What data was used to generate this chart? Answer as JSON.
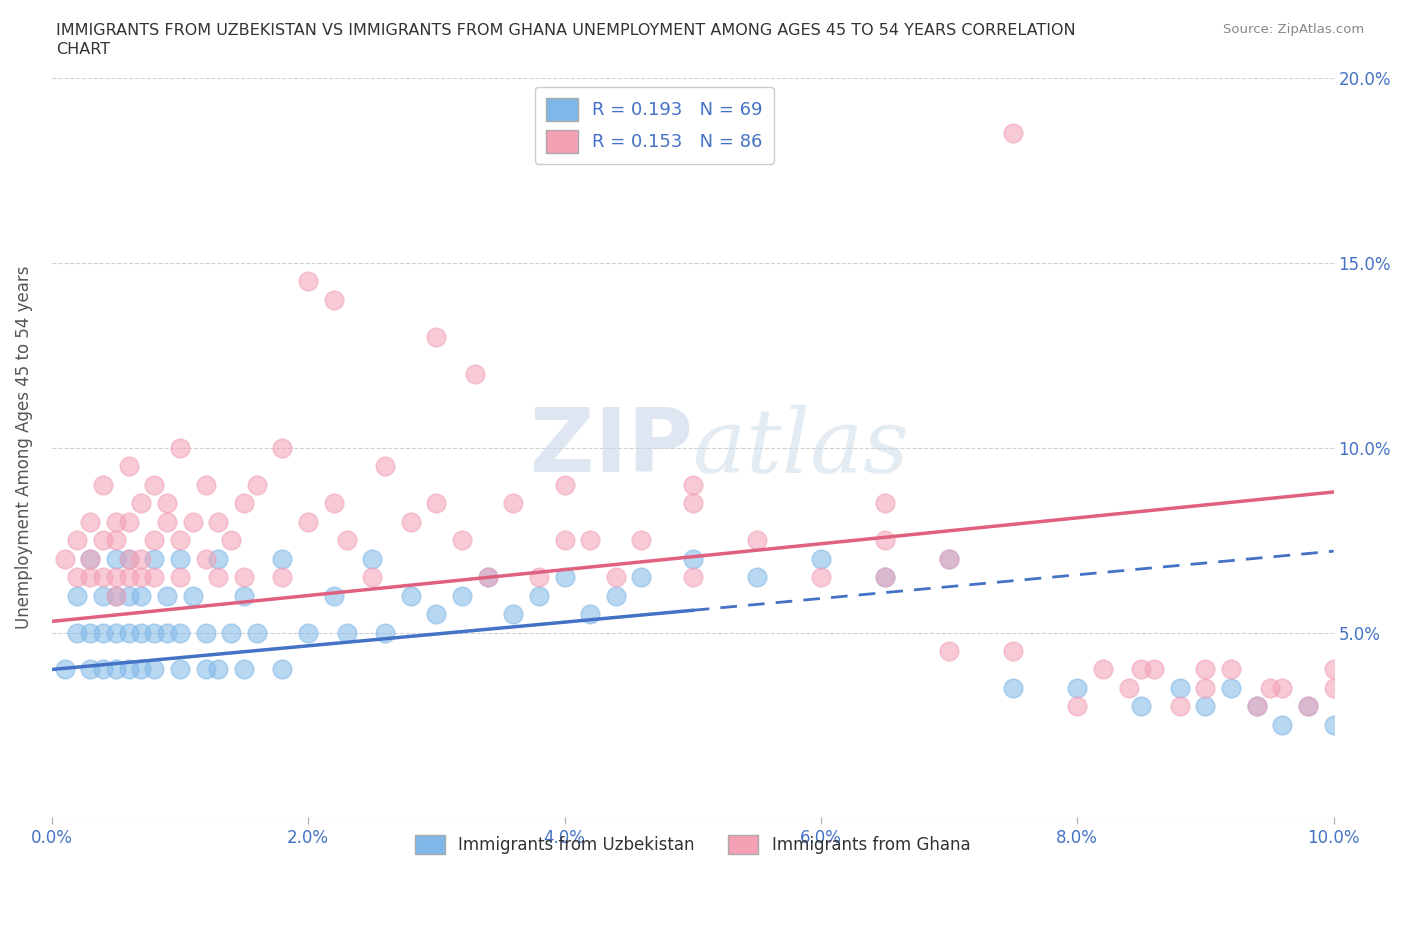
{
  "title_line1": "IMMIGRANTS FROM UZBEKISTAN VS IMMIGRANTS FROM GHANA UNEMPLOYMENT AMONG AGES 45 TO 54 YEARS CORRELATION",
  "title_line2": "CHART",
  "source": "Source: ZipAtlas.com",
  "ylabel": "Unemployment Among Ages 45 to 54 years",
  "legend_label_1": "Immigrants from Uzbekistan",
  "legend_label_2": "Immigrants from Ghana",
  "R1": 0.193,
  "N1": 69,
  "R2": 0.153,
  "N2": 86,
  "color1": "#7fb8e8",
  "color2": "#f4a0b5",
  "trend_color1": "#4472c4",
  "trend_color2": "#e06080",
  "xlim": [
    0.0,
    0.1
  ],
  "ylim": [
    0.0,
    0.2
  ],
  "xticks": [
    0.0,
    0.02,
    0.04,
    0.06,
    0.08,
    0.1
  ],
  "yticks": [
    0.0,
    0.05,
    0.1,
    0.15,
    0.2
  ],
  "xtick_labels": [
    "0.0%",
    "2.0%",
    "4.0%",
    "6.0%",
    "8.0%",
    "10.0%"
  ],
  "ytick_labels": [
    "",
    "5.0%",
    "10.0%",
    "15.0%",
    "20.0%"
  ],
  "watermark": "ZIPAtlas",
  "background_color": "#ffffff",
  "grid_color": "#d0d0d0",
  "tick_color": "#4472c4",
  "x1_data": [
    0.001,
    0.002,
    0.002,
    0.003,
    0.003,
    0.003,
    0.004,
    0.004,
    0.004,
    0.005,
    0.005,
    0.005,
    0.005,
    0.006,
    0.006,
    0.006,
    0.006,
    0.007,
    0.007,
    0.007,
    0.008,
    0.008,
    0.008,
    0.009,
    0.009,
    0.01,
    0.01,
    0.01,
    0.011,
    0.012,
    0.012,
    0.013,
    0.013,
    0.014,
    0.015,
    0.015,
    0.016,
    0.018,
    0.018,
    0.02,
    0.022,
    0.023,
    0.025,
    0.026,
    0.028,
    0.03,
    0.032,
    0.034,
    0.036,
    0.038,
    0.04,
    0.042,
    0.044,
    0.046,
    0.05,
    0.055,
    0.06,
    0.065,
    0.07,
    0.075,
    0.08,
    0.085,
    0.088,
    0.09,
    0.092,
    0.094,
    0.096,
    0.098,
    0.1
  ],
  "y1_data": [
    0.04,
    0.06,
    0.05,
    0.07,
    0.04,
    0.05,
    0.06,
    0.04,
    0.05,
    0.07,
    0.04,
    0.05,
    0.06,
    0.05,
    0.04,
    0.06,
    0.07,
    0.05,
    0.04,
    0.06,
    0.05,
    0.07,
    0.04,
    0.06,
    0.05,
    0.04,
    0.07,
    0.05,
    0.06,
    0.04,
    0.05,
    0.07,
    0.04,
    0.05,
    0.06,
    0.04,
    0.05,
    0.07,
    0.04,
    0.05,
    0.06,
    0.05,
    0.07,
    0.05,
    0.06,
    0.055,
    0.06,
    0.065,
    0.055,
    0.06,
    0.065,
    0.055,
    0.06,
    0.065,
    0.07,
    0.065,
    0.07,
    0.065,
    0.07,
    0.035,
    0.035,
    0.03,
    0.035,
    0.03,
    0.035,
    0.03,
    0.025,
    0.03,
    0.025
  ],
  "x2_data": [
    0.001,
    0.002,
    0.002,
    0.003,
    0.003,
    0.003,
    0.004,
    0.004,
    0.004,
    0.005,
    0.005,
    0.005,
    0.005,
    0.006,
    0.006,
    0.006,
    0.006,
    0.007,
    0.007,
    0.007,
    0.008,
    0.008,
    0.008,
    0.009,
    0.009,
    0.01,
    0.01,
    0.01,
    0.011,
    0.012,
    0.012,
    0.013,
    0.013,
    0.014,
    0.015,
    0.015,
    0.016,
    0.018,
    0.018,
    0.02,
    0.022,
    0.023,
    0.025,
    0.026,
    0.028,
    0.03,
    0.032,
    0.034,
    0.036,
    0.038,
    0.04,
    0.042,
    0.044,
    0.046,
    0.05,
    0.055,
    0.06,
    0.065,
    0.07,
    0.075,
    0.08,
    0.082,
    0.084,
    0.086,
    0.088,
    0.09,
    0.092,
    0.094,
    0.096,
    0.098,
    0.1,
    0.075,
    0.02,
    0.03,
    0.05,
    0.065,
    0.085,
    0.09,
    0.095,
    0.1,
    0.022,
    0.033,
    0.04,
    0.05,
    0.065,
    0.07
  ],
  "y2_data": [
    0.07,
    0.075,
    0.065,
    0.08,
    0.07,
    0.065,
    0.09,
    0.075,
    0.065,
    0.08,
    0.06,
    0.075,
    0.065,
    0.095,
    0.07,
    0.065,
    0.08,
    0.07,
    0.085,
    0.065,
    0.09,
    0.075,
    0.065,
    0.08,
    0.085,
    0.1,
    0.075,
    0.065,
    0.08,
    0.09,
    0.07,
    0.065,
    0.08,
    0.075,
    0.085,
    0.065,
    0.09,
    0.1,
    0.065,
    0.08,
    0.085,
    0.075,
    0.065,
    0.095,
    0.08,
    0.085,
    0.075,
    0.065,
    0.085,
    0.065,
    0.075,
    0.075,
    0.065,
    0.075,
    0.065,
    0.075,
    0.065,
    0.065,
    0.045,
    0.045,
    0.03,
    0.04,
    0.035,
    0.04,
    0.03,
    0.035,
    0.04,
    0.03,
    0.035,
    0.03,
    0.035,
    0.185,
    0.145,
    0.13,
    0.09,
    0.085,
    0.04,
    0.04,
    0.035,
    0.04,
    0.14,
    0.12,
    0.09,
    0.085,
    0.075,
    0.07
  ]
}
